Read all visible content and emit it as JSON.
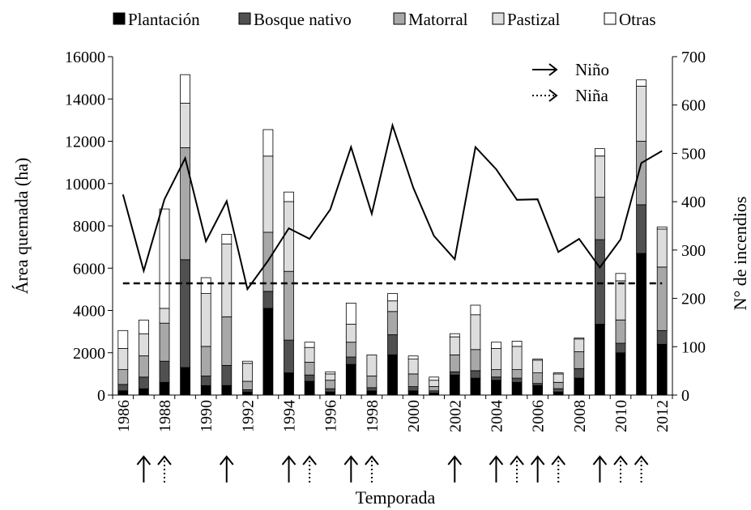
{
  "chart_data": {
    "type": "bar",
    "subtype": "stacked bar with line on secondary axis",
    "xlabel": "Temporada",
    "ylabel": "Área quemada (ha)",
    "y2label": "N° de incendios",
    "ylim": [
      0,
      16000
    ],
    "y2lim": [
      0,
      700
    ],
    "yticks": [
      "0",
      "2000",
      "4000",
      "6000",
      "8000",
      "10000",
      "12000",
      "14000",
      "16000"
    ],
    "y2ticks": [
      "0",
      "100",
      "200",
      "300",
      "400",
      "500",
      "600",
      "700"
    ],
    "xtick_labels": [
      "1986",
      "1988",
      "1990",
      "1992",
      "1994",
      "1996",
      "1998",
      "2000",
      "2002",
      "2004",
      "2006",
      "2008",
      "2010",
      "2012"
    ],
    "legend_position": "top",
    "grid": false,
    "categories": [
      1986,
      1987,
      1988,
      1989,
      1990,
      1991,
      1992,
      1993,
      1994,
      1995,
      1996,
      1997,
      1998,
      1999,
      2000,
      2001,
      2002,
      2003,
      2004,
      2005,
      2006,
      2007,
      2008,
      2009,
      2010,
      2011,
      2012
    ],
    "series": [
      {
        "name": "Plantación",
        "color": "#000000",
        "values": [
          200,
          300,
          600,
          1300,
          450,
          450,
          150,
          4100,
          1050,
          650,
          150,
          1450,
          200,
          1900,
          200,
          100,
          950,
          800,
          700,
          600,
          450,
          150,
          800,
          3350,
          2000,
          6700,
          2400
        ]
      },
      {
        "name": "Bosque nativo",
        "color": "#505050",
        "values": [
          300,
          550,
          1000,
          5100,
          450,
          950,
          100,
          800,
          1550,
          300,
          150,
          350,
          150,
          950,
          200,
          100,
          150,
          350,
          150,
          200,
          100,
          150,
          450,
          4000,
          450,
          2300,
          650
        ]
      },
      {
        "name": "Matorral",
        "color": "#a8a8a8",
        "values": [
          700,
          1000,
          1800,
          5300,
          1400,
          2300,
          400,
          2800,
          3250,
          600,
          400,
          700,
          550,
          1100,
          600,
          200,
          800,
          1000,
          350,
          400,
          500,
          300,
          800,
          2000,
          1100,
          3000,
          3000
        ]
      },
      {
        "name": "Pastizal",
        "color": "#dddddd",
        "values": [
          1000,
          1050,
          700,
          2100,
          2500,
          3450,
          850,
          3600,
          3300,
          700,
          300,
          850,
          1000,
          500,
          700,
          300,
          850,
          1650,
          1000,
          1100,
          600,
          400,
          600,
          1950,
          1850,
          2600,
          1800
        ]
      },
      {
        "name": "Otras",
        "color": "#ffffff",
        "values": [
          850,
          650,
          4700,
          1350,
          750,
          450,
          100,
          1250,
          450,
          250,
          100,
          1000,
          0,
          350,
          150,
          150,
          150,
          450,
          300,
          250,
          50,
          50,
          50,
          350,
          350,
          300,
          100
        ]
      }
    ],
    "line_series": {
      "name": "N° de incendios",
      "axis": "secondary",
      "values": [
        415,
        257,
        405,
        490,
        318,
        401,
        219,
        278,
        345,
        323,
        384,
        513,
        375,
        558,
        429,
        329,
        281,
        513,
        467,
        404,
        405,
        296,
        323,
        264,
        322,
        480,
        505
      ]
    },
    "reference_line": {
      "axis": "primary",
      "value": 5280,
      "style": "dashed"
    },
    "enso_arrows": [
      {
        "year": 1987,
        "type": "Niño"
      },
      {
        "year": 1988,
        "type": "Niña"
      },
      {
        "year": 1991,
        "type": "Niño"
      },
      {
        "year": 1994,
        "type": "Niño"
      },
      {
        "year": 1995,
        "type": "Niña"
      },
      {
        "year": 1997,
        "type": "Niño"
      },
      {
        "year": 1998,
        "type": "Niña"
      },
      {
        "year": 2002,
        "type": "Niño"
      },
      {
        "year": 2004,
        "type": "Niño"
      },
      {
        "year": 2005,
        "type": "Niña"
      },
      {
        "year": 2006,
        "type": "Niño"
      },
      {
        "year": 2007,
        "type": "Niña"
      },
      {
        "year": 2009,
        "type": "Niño"
      },
      {
        "year": 2010,
        "type": "Niña"
      },
      {
        "year": 2011,
        "type": "Niña"
      }
    ],
    "arrow_legend": [
      {
        "label": "Niño",
        "style": "solid"
      },
      {
        "label": "Niña",
        "style": "dotted"
      }
    ]
  }
}
